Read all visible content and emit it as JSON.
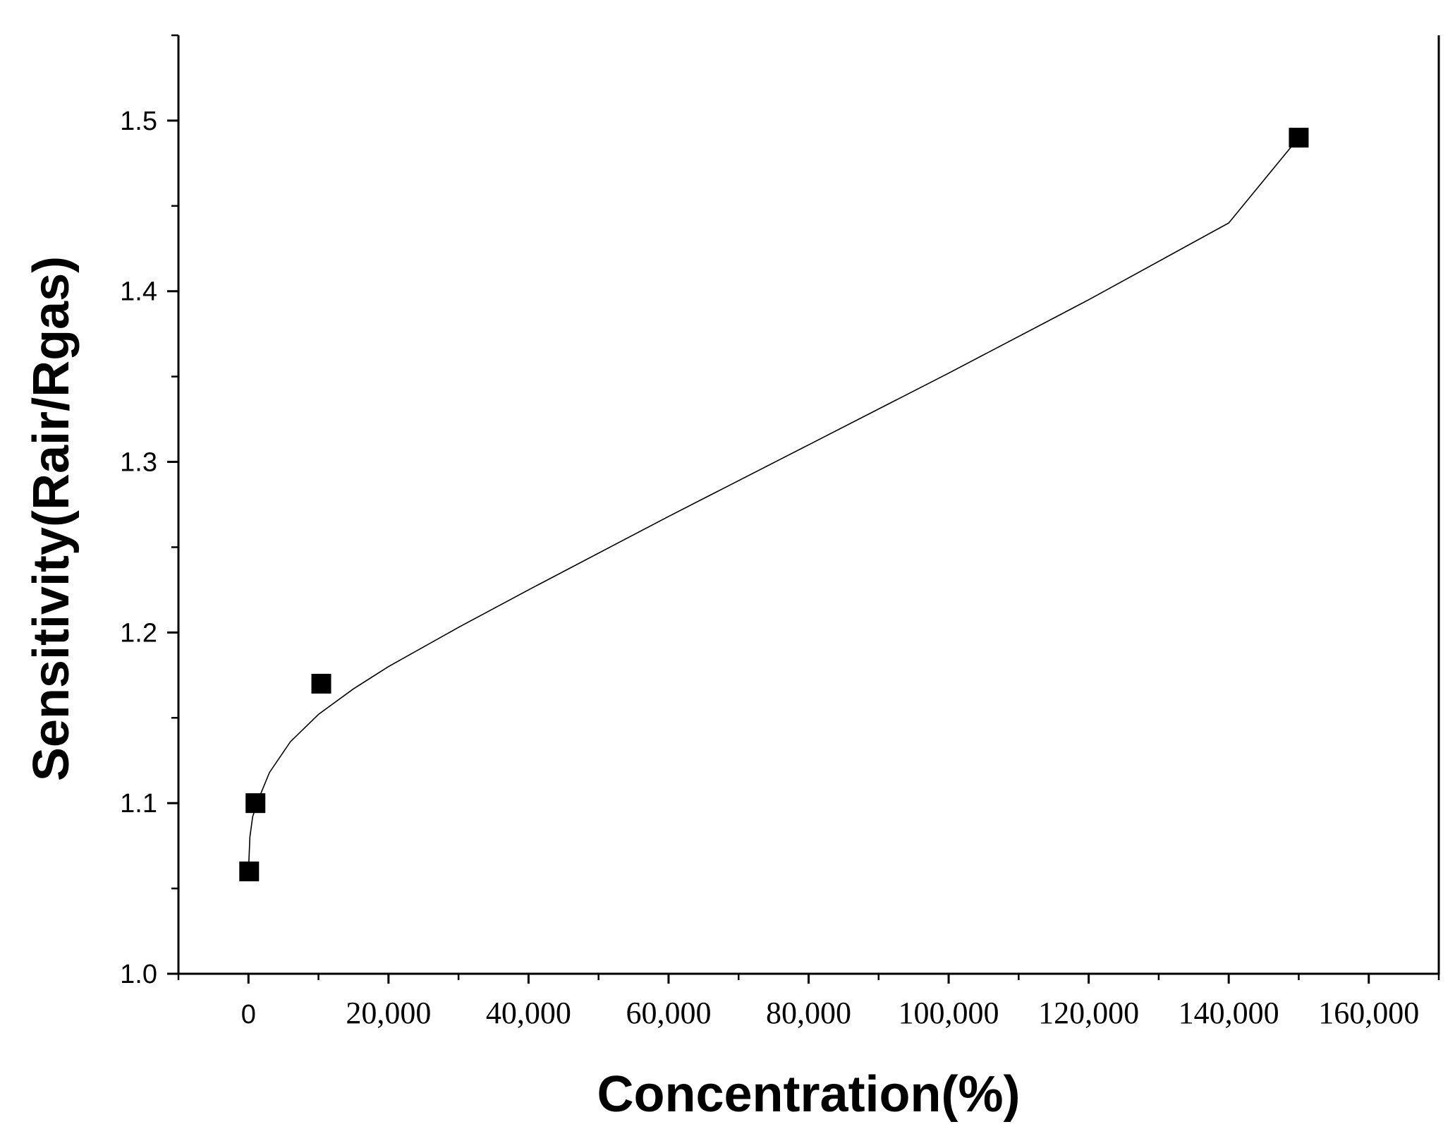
{
  "chart_data": {
    "type": "scatter",
    "title": "",
    "xlabel": "Concentration(%)",
    "ylabel": "Sensitivity(Rair/Rgas)",
    "xlim": [
      -10000,
      170000
    ],
    "ylim": [
      1.0,
      1.55
    ],
    "x_ticks": [
      0,
      20000,
      40000,
      60000,
      80000,
      100000,
      120000,
      140000,
      160000
    ],
    "x_tick_labels": [
      "0",
      "20,000",
      "40,000",
      "60,000",
      "80,000",
      "100,000",
      "120,000",
      "140,000",
      "160,000"
    ],
    "y_ticks": [
      1.0,
      1.1,
      1.2,
      1.3,
      1.4,
      1.5
    ],
    "y_tick_labels": [
      "1.0",
      "1.1",
      "1.2",
      "1.3",
      "1.4",
      "1.5"
    ],
    "grid": false,
    "legend": "none",
    "series": [
      {
        "marker": "square",
        "color": "#000000",
        "points": [
          {
            "x": 100,
            "y": 1.06
          },
          {
            "x": 1000,
            "y": 1.1
          },
          {
            "x": 10400,
            "y": 1.17
          },
          {
            "x": 150000,
            "y": 1.49
          }
        ]
      }
    ],
    "fit_line": {
      "color": "#000000",
      "points": [
        {
          "x": 0,
          "y": 1.06
        },
        {
          "x": 200,
          "y": 1.08
        },
        {
          "x": 600,
          "y": 1.092
        },
        {
          "x": 1500,
          "y": 1.103
        },
        {
          "x": 3000,
          "y": 1.118
        },
        {
          "x": 6000,
          "y": 1.136
        },
        {
          "x": 10000,
          "y": 1.152
        },
        {
          "x": 15000,
          "y": 1.167
        },
        {
          "x": 20000,
          "y": 1.18
        },
        {
          "x": 30000,
          "y": 1.203
        },
        {
          "x": 40000,
          "y": 1.225
        },
        {
          "x": 60000,
          "y": 1.268
        },
        {
          "x": 80000,
          "y": 1.31
        },
        {
          "x": 100000,
          "y": 1.352
        },
        {
          "x": 120000,
          "y": 1.395
        },
        {
          "x": 140000,
          "y": 1.44
        },
        {
          "x": 150000,
          "y": 1.49
        }
      ]
    }
  }
}
